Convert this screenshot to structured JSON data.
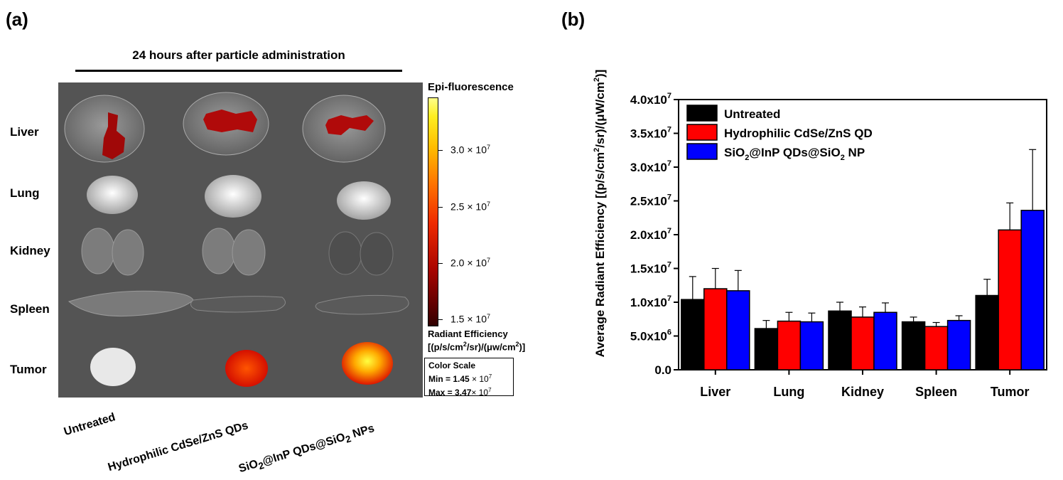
{
  "panel_a": {
    "label": "(a)",
    "header": "24 hours after particle administration",
    "organs": [
      "Liver",
      "Lung",
      "Kidney",
      "Spleen",
      "Tumor"
    ],
    "groups": [
      {
        "pre": "Untreated",
        "sub": "",
        "mid": "",
        "sub2": "",
        "post": ""
      },
      {
        "pre": "Hydrophilic CdSe/ZnS QDs",
        "sub": "",
        "mid": "",
        "sub2": "",
        "post": ""
      },
      {
        "pre": "SiO",
        "sub": "2",
        "mid": "@InP QDs@SiO",
        "sub2": "2",
        "post": " NPs"
      }
    ],
    "colorbar": {
      "title": "Epi-fluorescence",
      "ticks": [
        {
          "mant": "3.0 × 10",
          "exp": "7",
          "value": 30000000.0
        },
        {
          "mant": "2.5 × 10",
          "exp": "7",
          "value": 25000000.0
        },
        {
          "mant": "2.0 × 10",
          "exp": "7",
          "value": 20000000.0
        },
        {
          "mant": "1.5 × 10",
          "exp": "7",
          "value": 15000000.0
        }
      ],
      "unit_title": "Radiant Efficiency",
      "unit_pre": "[(p/s/cm",
      "unit_sup1": "2",
      "unit_mid": "/sr)/(μw/cm",
      "unit_sup2": "2",
      "unit_post": ")]",
      "color_scale_title": "Color Scale",
      "min_pre": "Min = 1.45",
      "min_mant": " × 10",
      "min_exp": "7",
      "max_pre": "Max = 3.47",
      "max_mant": "× 10",
      "max_exp": "7",
      "min_value": 14500000.0,
      "max_value": 34700000.0
    }
  },
  "panel_b": {
    "label": "(b)"
  },
  "chart_data": {
    "type": "bar",
    "title": "",
    "xlabel": "",
    "ylabel": "Average Radiant Efficiency [(p/s/cm²/sr)/(μW/cm²)]",
    "ylabel_parts": {
      "pre": "Average Radiant Efficiency [(p/s/cm",
      "sup1": "2",
      "mid": "/sr)/(μW/cm",
      "sup2": "2",
      "post": ")]"
    },
    "ylim": [
      0,
      40000000
    ],
    "yticks": [
      {
        "value": 0,
        "mant": "0.0",
        "exp": ""
      },
      {
        "value": 5000000,
        "mant": "5.0x10",
        "exp": "6"
      },
      {
        "value": 10000000,
        "mant": "1.0x10",
        "exp": "7"
      },
      {
        "value": 15000000,
        "mant": "1.5x10",
        "exp": "7"
      },
      {
        "value": 20000000,
        "mant": "2.0x10",
        "exp": "7"
      },
      {
        "value": 25000000,
        "mant": "2.5x10",
        "exp": "7"
      },
      {
        "value": 30000000,
        "mant": "3.0x10",
        "exp": "7"
      },
      {
        "value": 35000000,
        "mant": "3.5x10",
        "exp": "7"
      },
      {
        "value": 40000000,
        "mant": "4.0x10",
        "exp": "7"
      }
    ],
    "categories": [
      "Liver",
      "Lung",
      "Kidney",
      "Spleen",
      "Tumor"
    ],
    "legend_position": "top-left",
    "series": [
      {
        "name": "Untreated",
        "legend": {
          "pre": "Untreated",
          "sub": "",
          "mid": "",
          "sub2": "",
          "post": ""
        },
        "color": "#000000",
        "values": [
          10400000,
          6100000,
          8700000,
          7100000,
          11000000
        ],
        "errors": [
          3400000,
          1200000,
          1300000,
          700000,
          2400000
        ]
      },
      {
        "name": "Hydrophilic CdSe/ZnS QD",
        "legend": {
          "pre": "Hydrophilic CdSe/ZnS QD",
          "sub": "",
          "mid": "",
          "sub2": "",
          "post": ""
        },
        "color": "#ff0000",
        "values": [
          12000000,
          7200000,
          7800000,
          6400000,
          20700000
        ],
        "errors": [
          3000000,
          1300000,
          1500000,
          600000,
          4000000
        ]
      },
      {
        "name": "SiO2@InP QDs@SiO2 NP",
        "legend": {
          "pre": "SiO",
          "sub": "2",
          "mid": "@InP QDs@SiO",
          "sub2": "2",
          "post": " NP"
        },
        "color": "#0000ff",
        "values": [
          11700000,
          7100000,
          8500000,
          7300000,
          23600000
        ],
        "errors": [
          3000000,
          1300000,
          1400000,
          700000,
          9000000
        ]
      }
    ]
  }
}
